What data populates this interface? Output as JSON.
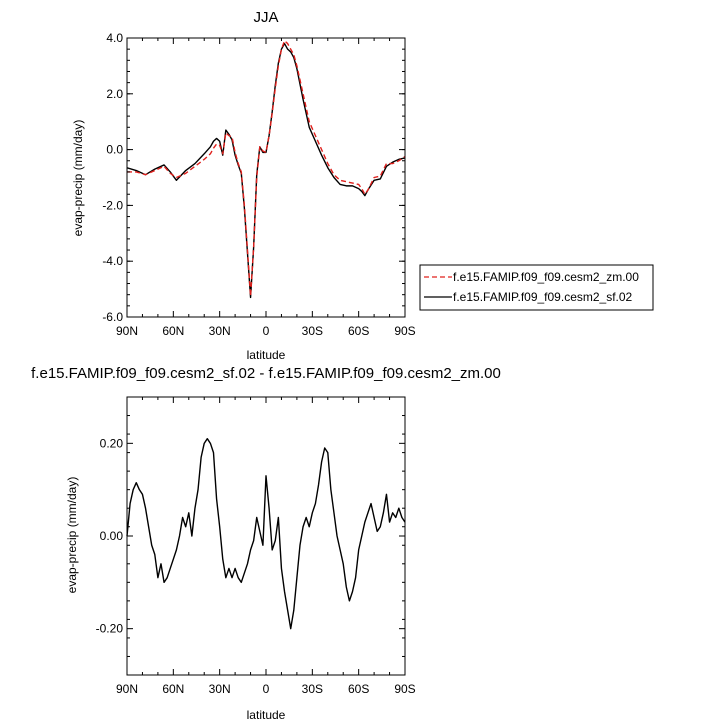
{
  "chart_data": [
    {
      "type": "line",
      "title": "JJA",
      "xlabel": "latitude",
      "ylabel": "evap-precip (mm/day)",
      "xlim": [
        90,
        -90
      ],
      "ylim": [
        -6,
        4
      ],
      "x_ticks": [
        90,
        60,
        30,
        0,
        -30,
        -60,
        -90
      ],
      "x_tick_labels": [
        "90N",
        "60N",
        "30N",
        "0",
        "30S",
        "60S",
        "90S"
      ],
      "y_ticks": [
        4,
        2,
        0,
        -2,
        -4,
        -6
      ],
      "y_tick_labels": [
        "4.0",
        "2.0",
        "0.0",
        "-2.0",
        "-4.0",
        "-6.0"
      ],
      "legend_position": "right",
      "series": [
        {
          "name": "f.e15.FAMIP.f09_f09.cesm2_zm.00",
          "color": "#e0201c",
          "dash": "dashed",
          "x": [
            90,
            84,
            78,
            72,
            66,
            62,
            58,
            52,
            46,
            40,
            36,
            34,
            32,
            30,
            28,
            26,
            24,
            22,
            20,
            18,
            16,
            14,
            12,
            10,
            8,
            6,
            4,
            2,
            0,
            -2,
            -4,
            -6,
            -8,
            -10,
            -12,
            -14,
            -16,
            -18,
            -20,
            -24,
            -28,
            -32,
            -36,
            -40,
            -44,
            -48,
            -52,
            -56,
            -60,
            -62,
            -64,
            -66,
            -70,
            -74,
            -78,
            -82,
            -86,
            -90
          ],
          "y": [
            -0.8,
            -0.8,
            -0.9,
            -0.75,
            -0.6,
            -0.85,
            -1.0,
            -0.85,
            -0.6,
            -0.35,
            -0.15,
            0.05,
            0.2,
            0.15,
            -0.15,
            0.6,
            0.5,
            0.45,
            -0.1,
            -0.5,
            -0.8,
            -2.0,
            -3.6,
            -5.25,
            -3.5,
            -1.0,
            0.1,
            -0.05,
            -0.1,
            0.5,
            1.3,
            2.2,
            3.0,
            3.6,
            3.9,
            3.8,
            3.6,
            3.4,
            3.0,
            2.0,
            1.0,
            0.5,
            0.0,
            -0.5,
            -0.9,
            -1.1,
            -1.15,
            -1.2,
            -1.25,
            -1.4,
            -1.6,
            -1.45,
            -1.0,
            -0.95,
            -0.5,
            -0.5,
            -0.4,
            -0.25
          ]
        },
        {
          "name": "f.e15.FAMIP.f09_f09.cesm2_sf.02",
          "color": "#000000",
          "dash": "solid",
          "x": [
            90,
            84,
            78,
            72,
            66,
            62,
            58,
            52,
            46,
            40,
            36,
            34,
            32,
            30,
            28,
            26,
            24,
            22,
            20,
            18,
            16,
            14,
            12,
            10,
            8,
            6,
            4,
            2,
            0,
            -2,
            -4,
            -6,
            -8,
            -10,
            -12,
            -14,
            -16,
            -18,
            -20,
            -24,
            -28,
            -32,
            -36,
            -40,
            -44,
            -48,
            -52,
            -56,
            -60,
            -62,
            -64,
            -66,
            -70,
            -74,
            -78,
            -82,
            -86,
            -90
          ],
          "y": [
            -0.65,
            -0.75,
            -0.9,
            -0.7,
            -0.55,
            -0.8,
            -1.1,
            -0.75,
            -0.5,
            -0.15,
            0.1,
            0.3,
            0.4,
            0.3,
            -0.2,
            0.7,
            0.55,
            0.35,
            -0.2,
            -0.55,
            -0.85,
            -2.1,
            -3.7,
            -5.3,
            -3.5,
            -0.9,
            0.1,
            -0.1,
            -0.1,
            0.5,
            1.35,
            2.3,
            3.1,
            3.6,
            3.8,
            3.6,
            3.5,
            3.3,
            2.9,
            1.8,
            0.8,
            0.3,
            -0.2,
            -0.65,
            -1.0,
            -1.25,
            -1.3,
            -1.3,
            -1.4,
            -1.5,
            -1.65,
            -1.45,
            -1.1,
            -1.05,
            -0.6,
            -0.45,
            -0.35,
            -0.3
          ]
        }
      ]
    },
    {
      "type": "line",
      "title": "f.e15.FAMIP.f09_f09.cesm2_sf.02 - f.e15.FAMIP.f09_f09.cesm2_zm.00",
      "xlabel": "latitude",
      "ylabel": "evap-precip (mm/day)",
      "xlim": [
        90,
        -90
      ],
      "ylim": [
        -0.3,
        0.3
      ],
      "x_ticks": [
        90,
        60,
        30,
        0,
        -30,
        -60,
        -90
      ],
      "x_tick_labels": [
        "90N",
        "60N",
        "30N",
        "0",
        "30S",
        "60S",
        "90S"
      ],
      "y_ticks": [
        0.2,
        0.0,
        -0.2
      ],
      "y_tick_labels": [
        "0.20",
        "0.00",
        "-0.20"
      ],
      "series": [
        {
          "color": "#000000",
          "dash": "solid",
          "x": [
            90,
            88,
            86,
            84,
            82,
            80,
            78,
            76,
            74,
            72,
            70,
            68,
            66,
            64,
            62,
            60,
            58,
            56,
            54,
            52,
            50,
            48,
            46,
            44,
            42,
            40,
            38,
            36,
            34,
            32,
            30,
            28,
            26,
            24,
            22,
            20,
            18,
            16,
            14,
            12,
            10,
            8,
            6,
            4,
            2,
            0,
            -2,
            -4,
            -6,
            -8,
            -10,
            -12,
            -14,
            -16,
            -18,
            -20,
            -22,
            -24,
            -26,
            -28,
            -30,
            -32,
            -34,
            -36,
            -38,
            -40,
            -42,
            -44,
            -46,
            -48,
            -50,
            -52,
            -54,
            -56,
            -58,
            -60,
            -62,
            -64,
            -66,
            -68,
            -70,
            -72,
            -74,
            -76,
            -78,
            -80,
            -82,
            -84,
            -86,
            -88,
            -90
          ],
          "y": [
            0.0,
            0.07,
            0.1,
            0.115,
            0.1,
            0.09,
            0.06,
            0.02,
            -0.02,
            -0.04,
            -0.09,
            -0.06,
            -0.1,
            -0.09,
            -0.07,
            -0.05,
            -0.03,
            0.0,
            0.04,
            0.02,
            0.05,
            0.0,
            0.06,
            0.1,
            0.17,
            0.2,
            0.21,
            0.2,
            0.18,
            0.08,
            0.02,
            -0.05,
            -0.09,
            -0.07,
            -0.09,
            -0.07,
            -0.09,
            -0.1,
            -0.08,
            -0.06,
            -0.03,
            -0.01,
            0.04,
            0.01,
            -0.02,
            0.13,
            0.06,
            -0.03,
            -0.01,
            0.04,
            -0.07,
            -0.12,
            -0.16,
            -0.2,
            -0.16,
            -0.09,
            -0.02,
            0.02,
            0.04,
            0.02,
            0.05,
            0.07,
            0.11,
            0.16,
            0.19,
            0.18,
            0.1,
            0.05,
            0.0,
            -0.03,
            -0.06,
            -0.11,
            -0.14,
            -0.12,
            -0.09,
            -0.03,
            0.0,
            0.03,
            0.05,
            0.07,
            0.04,
            0.01,
            0.02,
            0.05,
            0.09,
            0.03,
            0.05,
            0.04,
            0.06,
            0.04,
            0.03
          ]
        }
      ]
    }
  ]
}
